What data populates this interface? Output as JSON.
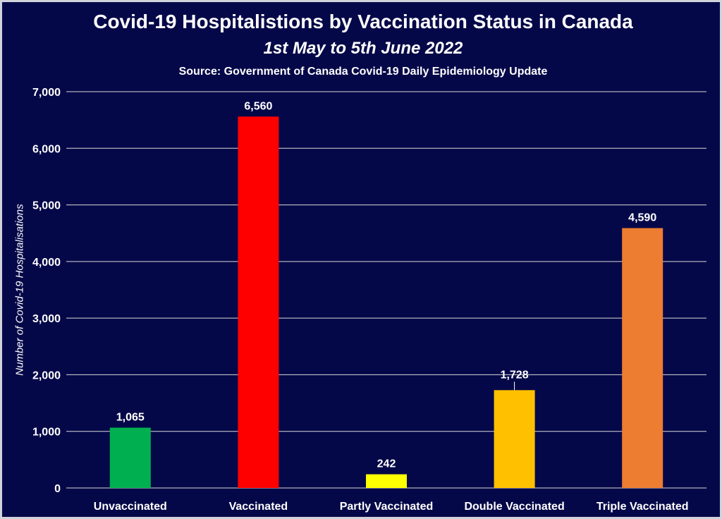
{
  "chart_data": {
    "type": "bar",
    "title": "Covid-19 Hospitalistions by Vaccination Status in Canada",
    "subtitle": "1st May to 5th June 2022",
    "source": "Source: Government of Canada Covid-19 Daily Epidemiology Update",
    "xlabel": "",
    "ylabel": "Number of Covid-19 Hospitalisations",
    "categories": [
      "Unvaccinated",
      "Vaccinated",
      "Partly Vaccinated",
      "Double Vaccinated",
      "Triple Vaccinated"
    ],
    "values": [
      1065,
      6560,
      242,
      1728,
      4590
    ],
    "data_labels": [
      "1,065",
      "6,560",
      "242",
      "1,728",
      "4,590"
    ],
    "colors": [
      "#00b050",
      "#ff0000",
      "#ffff00",
      "#ffc000",
      "#ed7d31"
    ],
    "ylim": [
      0,
      7000
    ],
    "yticks": [
      0,
      1000,
      2000,
      3000,
      4000,
      5000,
      6000,
      7000
    ],
    "ytick_labels": [
      "0",
      "1,000",
      "2,000",
      "3,000",
      "4,000",
      "5,000",
      "6,000",
      "7,000"
    ],
    "grid": true,
    "legend": "none",
    "background_color": "#050848"
  }
}
